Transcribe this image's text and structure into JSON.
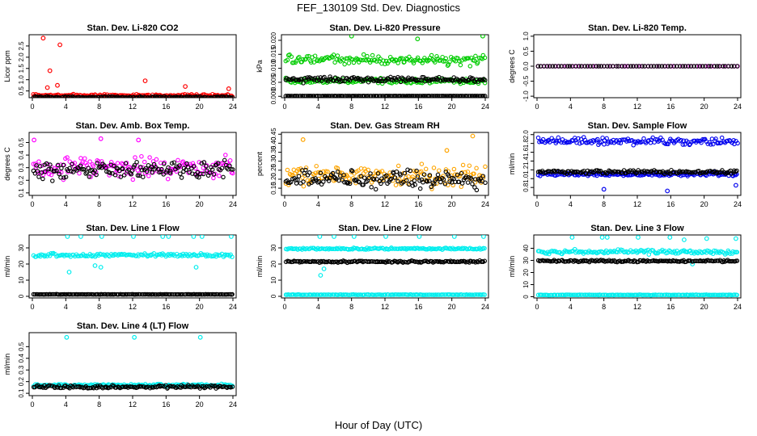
{
  "figure": {
    "title": "FEF_130109  Std. Dev. Diagnostics",
    "xlabel": "Hour of Day (UTC)"
  },
  "chart_data": [
    {
      "type": "scatter",
      "title": "Stan. Dev. Li-820 CO2",
      "ylabel": "Licor ppm",
      "xlim": [
        0,
        24
      ],
      "ylim": [
        0.2,
        3.0
      ],
      "xticks": [
        "0",
        "4",
        "8",
        "12",
        "16",
        "20",
        "24"
      ],
      "yticks": [
        "0.5",
        "1.0",
        "1.5",
        "2.0",
        "2.5"
      ],
      "series": [
        {
          "color": "#ff0000",
          "base": 0.3,
          "spread": 0.08,
          "outliers": [
            [
              1.3,
              2.85
            ],
            [
              2.1,
              1.4
            ],
            [
              3.3,
              2.55
            ],
            [
              1.8,
              0.65
            ],
            [
              3.0,
              0.75
            ],
            [
              13.5,
              0.95
            ],
            [
              18.3,
              0.7
            ],
            [
              23.5,
              0.6
            ]
          ]
        },
        {
          "color": "#000000",
          "base": 0.22,
          "spread": 0.05,
          "outliers": []
        }
      ]
    },
    {
      "type": "scatter",
      "title": "Stan. Dev. Li-820 Pressure",
      "ylabel": "kPa",
      "xlim": [
        0,
        24
      ],
      "ylim": [
        -0.0005,
        0.022
      ],
      "xticks": [
        "0",
        "4",
        "8",
        "12",
        "16",
        "20",
        "24"
      ],
      "yticks": [
        "0.000",
        "0.005",
        "0.010",
        "0.015",
        "0.020"
      ],
      "series": [
        {
          "color": "#00cc00",
          "base": 0.013,
          "spread": 0.0025,
          "outliers": [
            [
              8,
              0.0215
            ],
            [
              15.9,
              0.0205
            ],
            [
              23.7,
              0.0215
            ]
          ]
        },
        {
          "color": "#00cc00",
          "base": 0.0055,
          "spread": 0.0012,
          "outliers": []
        },
        {
          "color": "#000000",
          "base": 0.006,
          "spread": 0.0015,
          "outliers": []
        },
        {
          "color": "#000000",
          "base": 0.0001,
          "spread": 2e-05,
          "outliers": []
        }
      ]
    },
    {
      "type": "scatter",
      "title": "Stan. Dev. Li-820 Temp.",
      "ylabel": "degrees C",
      "xlim": [
        0,
        24
      ],
      "ylim": [
        -1.05,
        1.05
      ],
      "xticks": [
        "0",
        "4",
        "8",
        "12",
        "16",
        "20",
        "24"
      ],
      "yticks": [
        "-1.0",
        "-0.5",
        "0.0",
        "0.5",
        "1.0"
      ],
      "series": [
        {
          "color": "#ff00ff",
          "base": 0.0,
          "spread": 0.0,
          "outliers": []
        },
        {
          "color": "#000000",
          "base": 0.0,
          "spread": 0.0,
          "outliers": []
        }
      ]
    },
    {
      "type": "scatter",
      "title": "Stan. Dev. Amb. Box Temp.",
      "ylabel": "degrees C",
      "xlim": [
        0,
        24
      ],
      "ylim": [
        0.08,
        0.58
      ],
      "xticks": [
        "0",
        "4",
        "8",
        "12",
        "16",
        "20",
        "24"
      ],
      "yticks": [
        "0.1",
        "0.2",
        "0.3",
        "0.4",
        "0.5"
      ],
      "series": [
        {
          "color": "#ff00ff",
          "base": 0.3,
          "spread": 0.12,
          "outliers": [
            [
              0.2,
              0.52
            ],
            [
              8.2,
              0.53
            ],
            [
              12.7,
              0.52
            ]
          ]
        },
        {
          "color": "#000000",
          "base": 0.28,
          "spread": 0.1,
          "outliers": []
        }
      ]
    },
    {
      "type": "scatter",
      "title": "Stan. Dev. Gas Stream RH",
      "ylabel": "percent",
      "xlim": [
        0,
        24
      ],
      "ylim": [
        0.11,
        0.46
      ],
      "xticks": [
        "0",
        "4",
        "8",
        "12",
        "16",
        "20",
        "24"
      ],
      "yticks": [
        "0.15",
        "0.20",
        "0.25",
        "0.30",
        "0.35",
        "0.40",
        "0.45"
      ],
      "series": [
        {
          "color": "#ffa500",
          "base": 0.22,
          "spread": 0.08,
          "outliers": [
            [
              2.2,
              0.42
            ],
            [
              22.5,
              0.44
            ],
            [
              19.4,
              0.36
            ]
          ]
        },
        {
          "color": "#000000",
          "base": 0.2,
          "spread": 0.07,
          "outliers": []
        }
      ]
    },
    {
      "type": "scatter",
      "title": "Stan. Dev. Sample Flow",
      "ylabel": "ml/min",
      "xlim": [
        0,
        24
      ],
      "ylim": [
        0.62,
        2.05
      ],
      "xticks": [
        "0",
        "4",
        "8",
        "12",
        "16",
        "20",
        "24"
      ],
      "yticks": [
        "0.8",
        "1.0",
        "1.2",
        "1.4",
        "1.6",
        "1.8",
        "2.0"
      ],
      "series": [
        {
          "color": "#0000ee",
          "base": 1.85,
          "spread": 0.12,
          "outliers": [
            [
              15.6,
              0.72
            ],
            [
              8,
              0.76
            ],
            [
              23.8,
              0.85
            ]
          ]
        },
        {
          "color": "#0000ee",
          "base": 1.1,
          "spread": 0.06,
          "outliers": []
        },
        {
          "color": "#000000",
          "base": 1.15,
          "spread": 0.06,
          "outliers": []
        }
      ]
    },
    {
      "type": "scatter",
      "title": "Stan. Dev. Line 1 Flow",
      "ylabel": "ml/min",
      "xlim": [
        0,
        24
      ],
      "ylim": [
        -1,
        38
      ],
      "xticks": [
        "0",
        "4",
        "8",
        "12",
        "16",
        "20",
        "24"
      ],
      "yticks": [
        "0",
        "10",
        "20",
        "30"
      ],
      "series": [
        {
          "color": "#00eeee",
          "base": 25.5,
          "spread": 1.5,
          "outliers": [
            [
              4.2,
              37
            ],
            [
              5.8,
              37
            ],
            [
              8.3,
              37
            ],
            [
              12.1,
              37
            ],
            [
              15.6,
              37
            ],
            [
              16.3,
              37
            ],
            [
              19.3,
              37
            ],
            [
              20.3,
              37
            ],
            [
              23.8,
              37
            ],
            [
              4.4,
              15
            ],
            [
              7.5,
              19
            ],
            [
              8.2,
              18
            ],
            [
              19.6,
              18
            ]
          ]
        },
        {
          "color": "#000000",
          "base": 1.2,
          "spread": 0.15,
          "outliers": []
        }
      ]
    },
    {
      "type": "scatter",
      "title": "Stan. Dev. Line 2 Flow",
      "ylabel": "ml/min",
      "xlim": [
        0,
        24
      ],
      "ylim": [
        -1,
        38
      ],
      "xticks": [
        "0",
        "4",
        "8",
        "12",
        "16",
        "20",
        "24"
      ],
      "yticks": [
        "0",
        "10",
        "20",
        "30"
      ],
      "series": [
        {
          "color": "#00eeee",
          "base": 29.5,
          "spread": 0.8,
          "outliers": [
            [
              4.2,
              37
            ],
            [
              5.9,
              37
            ],
            [
              8.3,
              37
            ],
            [
              12.1,
              37
            ],
            [
              16.1,
              37
            ],
            [
              20.3,
              37
            ],
            [
              23.8,
              37
            ],
            [
              4.3,
              13
            ],
            [
              4.7,
              17
            ]
          ]
        },
        {
          "color": "#00eeee",
          "base": 1.0,
          "spread": 0.2,
          "outliers": []
        },
        {
          "color": "#000000",
          "base": 21.5,
          "spread": 0.8,
          "outliers": []
        }
      ]
    },
    {
      "type": "scatter",
      "title": "Stan. Dev. Line 3 Flow",
      "ylabel": "ml/min",
      "xlim": [
        0,
        24
      ],
      "ylim": [
        -1,
        51
      ],
      "xticks": [
        "0",
        "4",
        "8",
        "12",
        "16",
        "20",
        "24"
      ],
      "yticks": [
        "0",
        "10",
        "20",
        "30",
        "40"
      ],
      "series": [
        {
          "color": "#00eeee",
          "base": 37,
          "spread": 2.5,
          "outliers": [
            [
              4.2,
              49
            ],
            [
              7.8,
              49
            ],
            [
              8.4,
              49
            ],
            [
              12.1,
              49
            ],
            [
              15.9,
              49
            ],
            [
              17.6,
              47
            ],
            [
              20.3,
              48
            ],
            [
              23.8,
              48
            ],
            [
              18.6,
              27
            ]
          ]
        },
        {
          "color": "#00eeee",
          "base": 1.5,
          "spread": 0.3,
          "outliers": []
        },
        {
          "color": "#000000",
          "base": 29.5,
          "spread": 1.2,
          "outliers": []
        }
      ]
    },
    {
      "type": "scatter",
      "title": "Stan. Dev. Line 4 (LT) Flow",
      "ylabel": "ml/min",
      "xlim": [
        0,
        24
      ],
      "ylim": [
        0.08,
        0.62
      ],
      "xticks": [
        "0",
        "4",
        "8",
        "12",
        "16",
        "20",
        "24"
      ],
      "yticks": [
        "0.1",
        "0.2",
        "0.3",
        "0.4",
        "0.5"
      ],
      "series": [
        {
          "color": "#00eeee",
          "base": 0.17,
          "spread": 0.015,
          "outliers": [
            [
              4.1,
              0.58
            ],
            [
              12.2,
              0.58
            ],
            [
              20.1,
              0.58
            ]
          ]
        },
        {
          "color": "#000000",
          "base": 0.155,
          "spread": 0.02,
          "outliers": []
        }
      ]
    }
  ]
}
